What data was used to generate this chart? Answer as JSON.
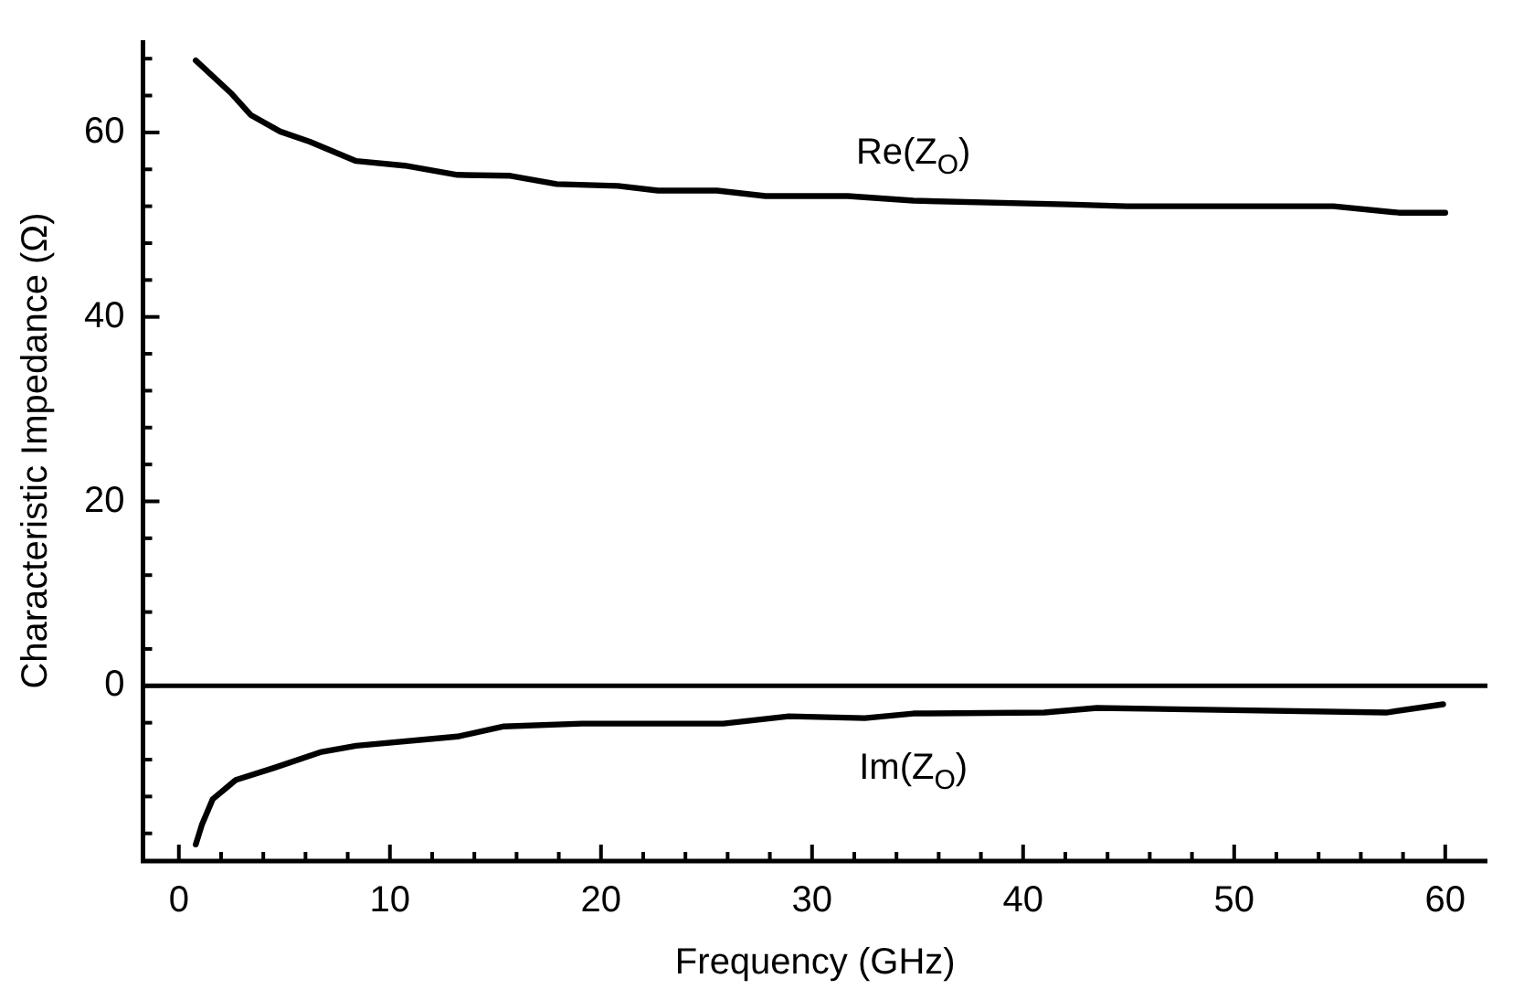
{
  "chart_data": {
    "type": "line",
    "xlabel": "Frequency (GHz)",
    "ylabel": "Characteristic Impedance (Ω)",
    "xlim": [
      -1.7,
      62
    ],
    "ylim": [
      -19,
      70
    ],
    "xticks": [
      0,
      {
        "value": 2,
        "label": null
      },
      {
        "value": 4,
        "label": null
      },
      {
        "value": 6,
        "label": null
      },
      {
        "value": 8,
        "label": null
      },
      10,
      {
        "value": 12,
        "label": null
      },
      {
        "value": 14,
        "label": null
      },
      {
        "value": 16,
        "label": null
      },
      {
        "value": 18,
        "label": null
      },
      20,
      {
        "value": 22,
        "label": null
      },
      {
        "value": 24,
        "label": null
      },
      {
        "value": 26,
        "label": null
      },
      {
        "value": 28,
        "label": null
      },
      30,
      {
        "value": 32,
        "label": null
      },
      {
        "value": 34,
        "label": null
      },
      {
        "value": 36,
        "label": null
      },
      {
        "value": 38,
        "label": null
      },
      40,
      {
        "value": 42,
        "label": null
      },
      {
        "value": 44,
        "label": null
      },
      {
        "value": 46,
        "label": null
      },
      {
        "value": 48,
        "label": null
      },
      50,
      {
        "value": 52,
        "label": null
      },
      {
        "value": 54,
        "label": null
      },
      {
        "value": 56,
        "label": null
      },
      {
        "value": 58,
        "label": null
      },
      60
    ],
    "yticks": [
      {
        "value": -16,
        "label": null
      },
      {
        "value": -12,
        "label": null
      },
      {
        "value": -8,
        "label": null
      },
      {
        "value": -4,
        "label": null
      },
      0,
      {
        "value": 4,
        "label": null
      },
      {
        "value": 8,
        "label": null
      },
      {
        "value": 12,
        "label": null
      },
      {
        "value": 16,
        "label": null
      },
      20,
      {
        "value": 24,
        "label": null
      },
      {
        "value": 28,
        "label": null
      },
      {
        "value": 32,
        "label": null
      },
      {
        "value": 36,
        "label": null
      },
      40,
      {
        "value": 44,
        "label": null
      },
      {
        "value": 48,
        "label": null
      },
      {
        "value": 52,
        "label": null
      },
      {
        "value": 56,
        "label": null
      },
      60,
      {
        "value": 64,
        "label": null
      },
      {
        "value": 68,
        "label": null
      }
    ],
    "grid": false,
    "legend": false,
    "marker": "none",
    "line_style": "solid",
    "ref_lines": [
      {
        "axis": "y",
        "value": 0,
        "color": "#000000"
      }
    ],
    "series": [
      {
        "name": "Re(Z$_{O}$)",
        "color": "#000000",
        "x": [
          0.8,
          2.5,
          3.4,
          4.8,
          6.2,
          8.4,
          10.7,
          13.2,
          15.7,
          17.9,
          20.8,
          22.7,
          25.5,
          27.8,
          31.7,
          34.8,
          42.1,
          44.9,
          54.7,
          57.8,
          60.0
        ],
        "values": [
          67.8,
          64.2,
          61.9,
          60.1,
          59.0,
          56.9,
          56.4,
          55.4,
          55.3,
          54.4,
          54.2,
          53.7,
          53.7,
          53.1,
          53.1,
          52.6,
          52.2,
          52.0,
          52.0,
          51.3,
          51.3
        ]
      },
      {
        "name": "Im(Z$_{O}$)",
        "color": "#000000",
        "x": [
          0.8,
          1.1,
          1.6,
          2.7,
          4.5,
          6.7,
          8.4,
          13.2,
          15.4,
          19.1,
          25.8,
          28.9,
          32.5,
          34.8,
          41.0,
          43.5,
          57.2,
          59.9
        ],
        "values": [
          -17.2,
          -15.0,
          -12.3,
          -10.2,
          -8.9,
          -7.2,
          -6.5,
          -5.5,
          -4.4,
          -4.1,
          -4.1,
          -3.3,
          -3.5,
          -3.0,
          -2.9,
          -2.4,
          -2.9,
          -2.0
        ]
      }
    ]
  }
}
